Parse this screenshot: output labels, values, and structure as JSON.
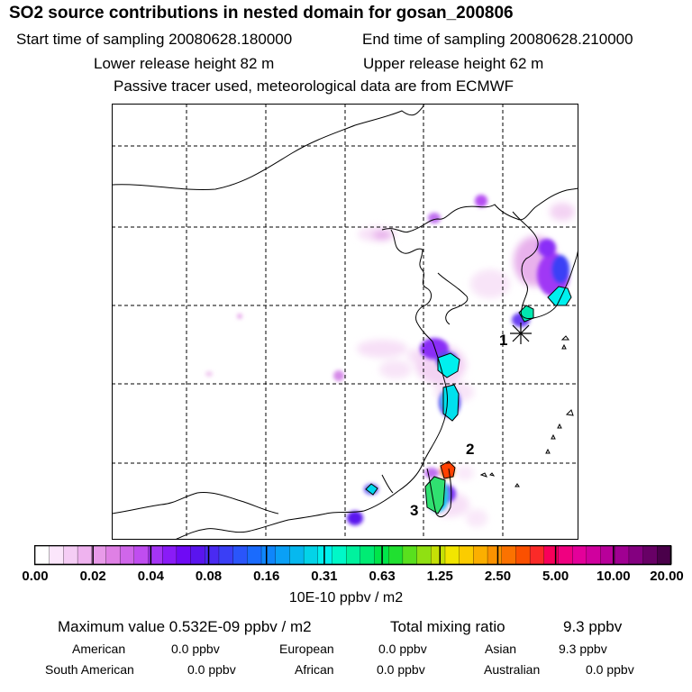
{
  "header": {
    "title": "SO2 source contributions in nested domain for gosan_200806",
    "start_time": "Start time of sampling 20080628.180000",
    "end_time": "End time of sampling 20080628.210000",
    "lower_release": "Lower release height   82 m",
    "upper_release": "Upper release height   62 m",
    "tracer_note": "Passive tracer used, meteorological data are from ECMWF"
  },
  "map": {
    "markers": [
      {
        "label": "1",
        "description": "receptor star"
      },
      {
        "label": "2",
        "description": "source point"
      },
      {
        "label": "3",
        "description": "source point"
      }
    ]
  },
  "colorbar": {
    "tick_labels": [
      "0.00",
      "0.02",
      "0.04",
      "0.08",
      "0.16",
      "0.31",
      "0.63",
      "1.25",
      "2.50",
      "5.00",
      "10.00",
      "20.00"
    ],
    "units": "10E-10 ppbv / m2",
    "colors": [
      "#ffffff",
      "#fbe6fb",
      "#f5cdf5",
      "#efb3ef",
      "#e89ae9",
      "#df80e5",
      "#d066ea",
      "#c04df0",
      "#a534f5",
      "#8a1bf7",
      "#6f0af5",
      "#5a14ee",
      "#4a2af2",
      "#3a3ff6",
      "#2a55fa",
      "#1a6bfd",
      "#0f86fb",
      "#0aa0f6",
      "#06b8ef",
      "#03d3e8",
      "#00f0ee",
      "#00f8c8",
      "#00f29e",
      "#00ec74",
      "#00e64a",
      "#20e030",
      "#59e01e",
      "#90e012",
      "#c5e006",
      "#f2e600",
      "#fbcc00",
      "#fbaf00",
      "#fb9200",
      "#fb7200",
      "#fb5000",
      "#fb2a28",
      "#f8005a",
      "#f00080",
      "#e4009a",
      "#d0009e",
      "#b8009a",
      "#a00092",
      "#840080",
      "#680066",
      "#4a004a"
    ]
  },
  "stats": {
    "max_value": "Maximum value  0.532E-09 ppbv / m2",
    "total_label": "Total mixing ratio",
    "total_value": "9.3 ppbv"
  },
  "regions": [
    {
      "name": "American",
      "value": "0.0 ppbv"
    },
    {
      "name": "European",
      "value": "0.0 ppbv"
    },
    {
      "name": "Asian",
      "value": "9.3 ppbv"
    },
    {
      "name": "South American",
      "value": "0.0 ppbv"
    },
    {
      "name": "African",
      "value": "0.0 ppbv"
    },
    {
      "name": "Australian",
      "value": "0.0 ppbv"
    }
  ]
}
